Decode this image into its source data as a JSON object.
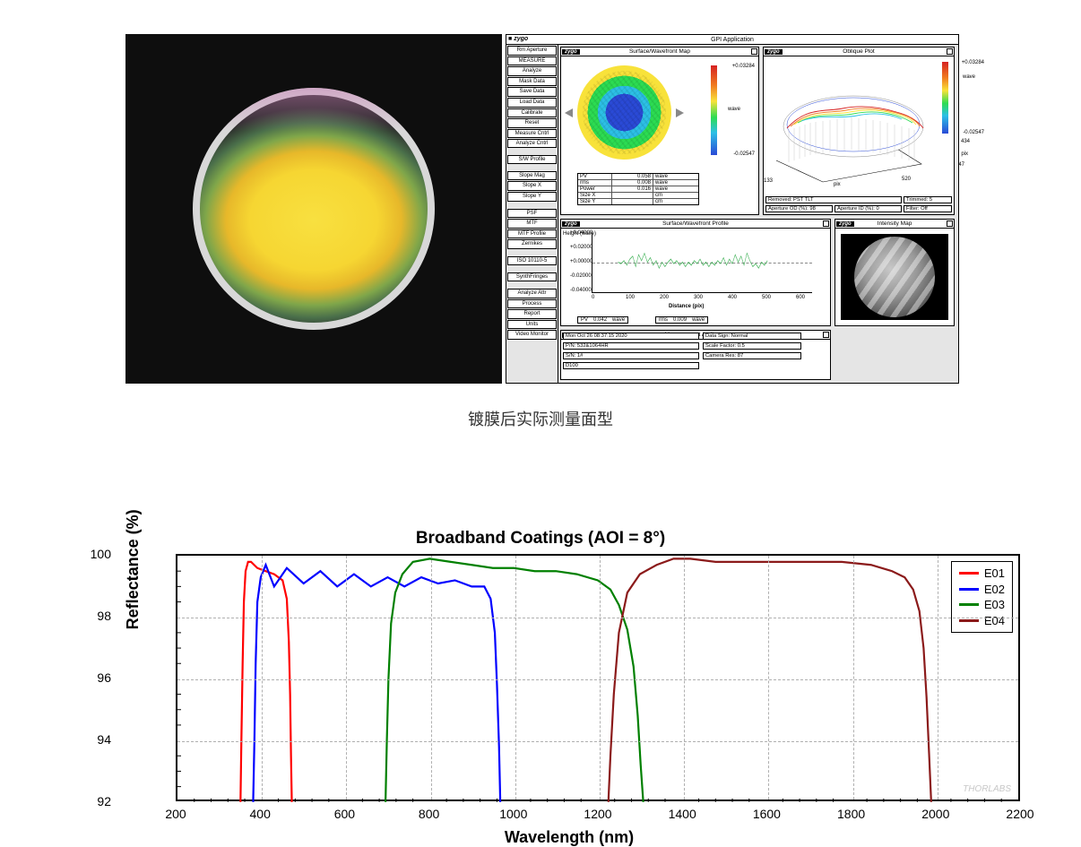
{
  "caption": "镀膜后实际测量面型",
  "zygo": {
    "app_title": "GPI Application",
    "logo": "zygo",
    "sidebar": {
      "top": "Rm Aperture",
      "section1": [
        "MEASURE",
        "Analyze",
        "Mask Data",
        "Save Data",
        "Load Data",
        "Calibrate",
        "Reset"
      ],
      "sec_measure": "Measure Cntrl",
      "sec_analyze": "Analyze Cntrl",
      "sw_profile": "S/W Profile",
      "slope": [
        "Slope Mag",
        "Slope X",
        "Slope Y"
      ],
      "psf": [
        "PSF",
        "MTF",
        "MTF Profile",
        "Zernikes"
      ],
      "iso": "ISO 10110-5",
      "synth": "SynthFringes",
      "attr": [
        "Analyze Attr",
        "Process",
        "Report",
        "Units",
        "Video Monitor"
      ]
    },
    "sw_map": {
      "title": "Surface/Wavefront Map",
      "cb_top": "+0.03284",
      "cb_bot": "-0.02547",
      "cb_unit": "wave",
      "metrics": [
        {
          "k": "PV",
          "v": "0.058",
          "u": "wave"
        },
        {
          "k": "rms",
          "v": "0.008",
          "u": "wave"
        },
        {
          "k": "Power",
          "v": "0.016",
          "u": "wave"
        },
        {
          "k": "Size X",
          "v": "",
          "u": "cm"
        },
        {
          "k": "Size Y",
          "v": "",
          "u": "cm"
        }
      ]
    },
    "oblique": {
      "title": "Oblique Plot",
      "cb_top": "+0.03284",
      "cb_bot": "-0.02547",
      "ax_y": "434",
      "ax_x_l": "133",
      "ax_x_r": "520",
      "ax_z": "47",
      "unit": "wave",
      "pix": "pix",
      "removed": "Removed: PST TLT",
      "trimmed": "Trimmed:   5",
      "ap_od": "Aperture OD (%):   98",
      "ap_id": "Aperture ID (%):    0",
      "filter": "Filter:      Off"
    },
    "profile": {
      "title": "Surface/Wavefront Profile",
      "ylabel": "Height (wave)",
      "xlabel": "Distance (pix)",
      "yticks": [
        "+0.04000",
        "+0.02000",
        "+0.00000",
        "-0.02000",
        "-0.04000"
      ],
      "xticks": [
        "0",
        "100",
        "200",
        "300",
        "400",
        "500",
        "600"
      ],
      "pv": {
        "k": "PV",
        "v": "0.042",
        "u": "wave"
      },
      "rms": {
        "k": "rms",
        "v": "0.009",
        "u": "wave"
      },
      "line_color": "#3cb054"
    },
    "intensity": {
      "title": "Intensity Map"
    },
    "mattr": {
      "title": "Measurement Attributes",
      "date": "Mon Oct 26 08:37:15 2020",
      "pn": "P/N: 532&1064HR",
      "sn": "S/N: 1#",
      "id": "D100",
      "data_sign": "Data Sign:   Normal",
      "scale": "Scale Factor: 0.5",
      "cam": "Camera Res:        87"
    }
  },
  "chart": {
    "type": "line",
    "title": "Broadband Coatings (AOI = 8°)",
    "xlabel": "Wavelength (nm)",
    "ylabel": "Reflectance (%)",
    "xlim": [
      200,
      2200
    ],
    "ylim": [
      92,
      100
    ],
    "xtick_step": 200,
    "ytick_step": 2,
    "xtick_minor": 5,
    "ytick_minor": 4,
    "background_color": "#ffffff",
    "grid_color": "#b0b0b0",
    "grid_dash": "4 3",
    "border_color": "#000000",
    "line_width": 2.2,
    "watermark": "THORLABS",
    "series": [
      {
        "name": "E01",
        "color": "#ff0000",
        "x": [
          350,
          352,
          355,
          358,
          362,
          368,
          375,
          390,
          410,
          430,
          450,
          460,
          465,
          468,
          470,
          472
        ],
        "y": [
          92,
          94,
          96.5,
          98.5,
          99.5,
          99.8,
          99.8,
          99.6,
          99.5,
          99.4,
          99.2,
          98.6,
          97.2,
          95.5,
          93.5,
          92
        ]
      },
      {
        "name": "E02",
        "color": "#0000ff",
        "x": [
          380,
          383,
          386,
          390,
          398,
          410,
          430,
          460,
          500,
          540,
          580,
          620,
          660,
          700,
          740,
          780,
          820,
          860,
          900,
          930,
          945,
          955,
          960,
          965,
          968
        ],
        "y": [
          92,
          94,
          96.5,
          98.5,
          99.3,
          99.7,
          99.0,
          99.6,
          99.1,
          99.5,
          99.0,
          99.4,
          99.0,
          99.3,
          99.0,
          99.3,
          99.1,
          99.2,
          99.0,
          99.0,
          98.6,
          97.5,
          95.8,
          93.8,
          92
        ]
      },
      {
        "name": "E03",
        "color": "#008000",
        "x": [
          695,
          698,
          702,
          708,
          718,
          735,
          760,
          800,
          850,
          900,
          950,
          1000,
          1050,
          1100,
          1150,
          1200,
          1230,
          1250,
          1270,
          1285,
          1295,
          1302,
          1308
        ],
        "y": [
          92,
          94,
          96,
          97.8,
          98.8,
          99.4,
          99.8,
          99.9,
          99.8,
          99.7,
          99.6,
          99.6,
          99.5,
          99.5,
          99.4,
          99.2,
          98.9,
          98.4,
          97.6,
          96.4,
          94.8,
          93.2,
          92
        ]
      },
      {
        "name": "E04",
        "color": "#8b1a1a",
        "x": [
          1225,
          1230,
          1238,
          1250,
          1270,
          1300,
          1340,
          1380,
          1420,
          1480,
          1550,
          1620,
          1700,
          1780,
          1850,
          1900,
          1930,
          1950,
          1965,
          1975,
          1982,
          1988,
          1993
        ],
        "y": [
          92,
          93.5,
          95.5,
          97.5,
          98.8,
          99.4,
          99.7,
          99.9,
          99.9,
          99.8,
          99.8,
          99.8,
          99.8,
          99.8,
          99.7,
          99.5,
          99.3,
          98.9,
          98.2,
          97.0,
          95.4,
          93.6,
          92
        ]
      }
    ]
  }
}
